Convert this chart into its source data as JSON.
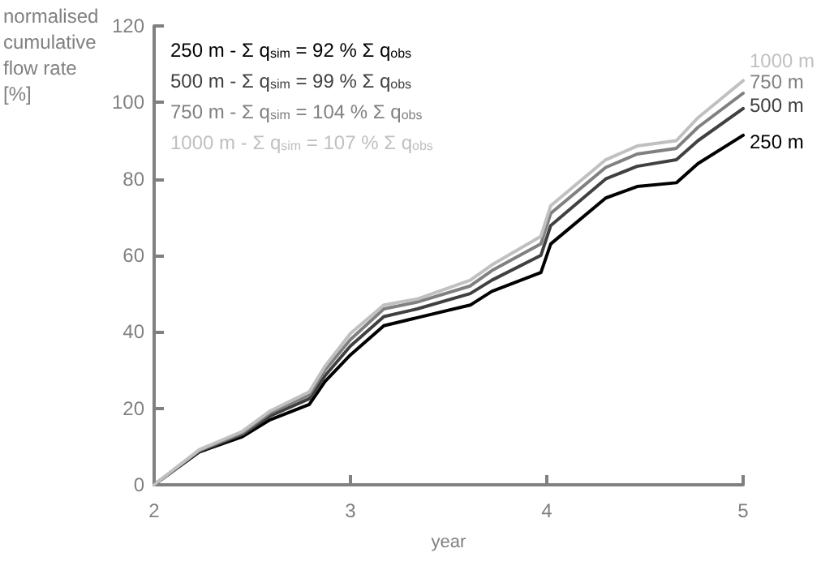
{
  "chart_data": {
    "type": "line",
    "xlabel": "year",
    "ylabel": "normalised\ncumulative\nflow rate\n[%]",
    "x": [
      2,
      2.23,
      2.45,
      2.59,
      2.79,
      2.87,
      3.0,
      3.17,
      3.34,
      3.61,
      3.72,
      3.97,
      4.02,
      4.3,
      4.46,
      4.66,
      4.77,
      5.0
    ],
    "series": [
      {
        "name": "250 m - Σ q$_{sim}$ = 92 % Σ q$_{obs}$",
        "color": "#000000",
        "values": [
          0,
          8.6,
          12.6,
          17,
          21,
          27,
          34,
          41.6,
          43.7,
          47,
          50.6,
          55.5,
          63,
          75,
          78,
          79,
          84,
          91.4
        ]
      },
      {
        "name": "500 m - Σ q$_{sim}$ = 99 % Σ q$_{obs}$",
        "color": "#404040",
        "values": [
          0,
          8.8,
          13.2,
          18,
          22.5,
          28.5,
          36.3,
          44,
          46,
          50,
          53.5,
          60,
          67.8,
          80,
          83.3,
          85,
          90,
          98.4
        ]
      },
      {
        "name": "750 m - Σ q$_{sim}$ = 104 % Σ q$_{obs}$",
        "color": "#808080",
        "values": [
          0,
          9,
          13.6,
          18.8,
          23.5,
          30,
          38,
          46,
          47.8,
          52,
          56,
          63,
          71,
          83,
          86.5,
          88,
          93.5,
          102.4
        ]
      },
      {
        "name": "1000 m - Σ q$_{sim}$ = 107 % Σ q$_{obs}$",
        "color": "#c0c0c0",
        "values": [
          0,
          9.2,
          14,
          19.3,
          24.3,
          31,
          39.6,
          47,
          48.6,
          53.5,
          57.5,
          65,
          73,
          85,
          88.6,
          90,
          96,
          105.7
        ]
      }
    ],
    "annotations": [
      "250 m",
      "500 m",
      "750 m",
      "1000 m"
    ],
    "xlim": [
      2,
      5
    ],
    "xticks": [
      2,
      3,
      4,
      5
    ],
    "ylim": [
      0,
      120
    ],
    "yticks": [
      0,
      20,
      40,
      60,
      80,
      100,
      120
    ],
    "grid": false,
    "legend": "top left",
    "marker": "none",
    "line_style": "solid"
  }
}
